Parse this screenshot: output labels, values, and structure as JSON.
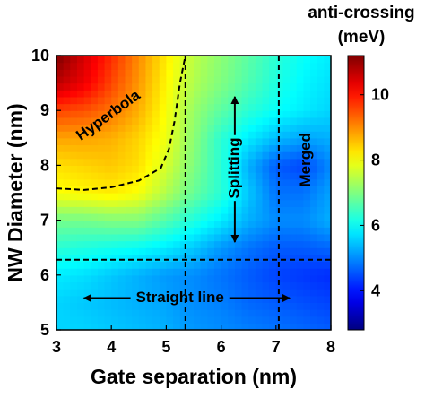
{
  "chart_data": {
    "type": "heatmap",
    "title": "",
    "xlabel": "Gate separation (nm)",
    "ylabel": "NW Diameter (nm)",
    "xlim": [
      3,
      8
    ],
    "ylim": [
      5,
      10
    ],
    "xticks": [
      3,
      4,
      5,
      6,
      7,
      8
    ],
    "yticks": [
      5,
      6,
      7,
      8,
      9,
      10
    ],
    "colorbar": {
      "label_line1": "anti-crossing",
      "label_line2": "(meV)",
      "range": [
        2.8,
        11.2
      ],
      "ticks": [
        4,
        6,
        8,
        10
      ],
      "colormap": "jet"
    },
    "x": [
      3,
      3.5,
      4,
      4.5,
      5,
      5.5,
      6,
      6.5,
      7,
      7.5,
      8
    ],
    "y": [
      5,
      5.5,
      6,
      6.5,
      7,
      7.5,
      8,
      8.5,
      9,
      9.5,
      10
    ],
    "z": [
      [
        5.6,
        5.6,
        5.5,
        5.4,
        5.3,
        5.1,
        5.0,
        4.9,
        4.8,
        4.7,
        4.6
      ],
      [
        5.6,
        5.5,
        5.4,
        5.3,
        5.2,
        5.0,
        4.9,
        4.7,
        4.6,
        4.5,
        4.4
      ],
      [
        5.8,
        5.7,
        5.5,
        5.3,
        5.1,
        5.0,
        4.8,
        4.6,
        4.4,
        4.3,
        4.2
      ],
      [
        6.3,
        6.2,
        6.1,
        6.0,
        5.8,
        5.5,
        5.1,
        4.8,
        4.6,
        4.6,
        4.7
      ],
      [
        6.9,
        6.9,
        7.0,
        7.0,
        6.6,
        6.2,
        5.8,
        5.3,
        5.0,
        5.0,
        5.3
      ],
      [
        8.0,
        8.1,
        8.2,
        8.0,
        7.4,
        6.8,
        6.3,
        5.5,
        4.8,
        4.8,
        5.2
      ],
      [
        8.3,
        8.4,
        8.5,
        8.3,
        7.7,
        7.0,
        6.3,
        5.3,
        4.6,
        4.4,
        5.0
      ],
      [
        8.8,
        8.8,
        8.7,
        8.4,
        7.9,
        7.1,
        6.3,
        5.8,
        5.4,
        5.2,
        5.3
      ],
      [
        9.6,
        9.5,
        9.2,
        8.7,
        8.0,
        7.2,
        6.7,
        6.3,
        6.0,
        5.8,
        5.6
      ],
      [
        10.7,
        10.3,
        9.6,
        8.9,
        8.1,
        7.4,
        7.0,
        6.6,
        6.2,
        5.9,
        5.7
      ],
      [
        11.2,
        10.5,
        9.8,
        9.0,
        8.2,
        7.5,
        7.1,
        6.7,
        6.3,
        6.0,
        5.8
      ]
    ],
    "boundaries": [
      {
        "name": "hyperbola-boundary",
        "points": [
          [
            3.0,
            7.58
          ],
          [
            3.5,
            7.55
          ],
          [
            4.0,
            7.6
          ],
          [
            4.5,
            7.72
          ],
          [
            4.9,
            7.95
          ],
          [
            5.05,
            8.3
          ],
          [
            5.15,
            8.8
          ],
          [
            5.25,
            9.5
          ],
          [
            5.35,
            10.0
          ]
        ]
      },
      {
        "name": "vertical-boundary-1",
        "points": [
          [
            5.35,
            5.0
          ],
          [
            5.35,
            10.0
          ]
        ]
      },
      {
        "name": "vertical-boundary-2",
        "points": [
          [
            7.05,
            5.0
          ],
          [
            7.05,
            10.0
          ]
        ]
      },
      {
        "name": "horizontal-boundary",
        "points": [
          [
            3.0,
            6.28
          ],
          [
            8.0,
            6.28
          ]
        ]
      }
    ],
    "annotations": {
      "hyperbola": {
        "text": "Hyperbola",
        "x": 3.95,
        "y": 8.9,
        "rotation": -36
      },
      "splitting": {
        "text": "Splitting",
        "x": 6.25,
        "y": 7.95,
        "rotation": -90
      },
      "merged": {
        "text": "Merged",
        "x": 7.55,
        "y": 8.1,
        "rotation": -90
      },
      "straight_line": {
        "text": "Straight line",
        "x": 5.25,
        "y": 5.58,
        "rotation": 0
      }
    },
    "arrows": [
      {
        "name": "splitting-arrow-up",
        "from": [
          6.25,
          8.55
        ],
        "to": [
          6.25,
          9.25
        ]
      },
      {
        "name": "splitting-arrow-down",
        "from": [
          6.25,
          7.35
        ],
        "to": [
          6.25,
          6.6
        ]
      },
      {
        "name": "straight-line-arrow-left",
        "from": [
          4.35,
          5.58
        ],
        "to": [
          3.5,
          5.58
        ]
      },
      {
        "name": "straight-line-arrow-right",
        "from": [
          6.15,
          5.58
        ],
        "to": [
          7.25,
          5.58
        ]
      }
    ]
  }
}
